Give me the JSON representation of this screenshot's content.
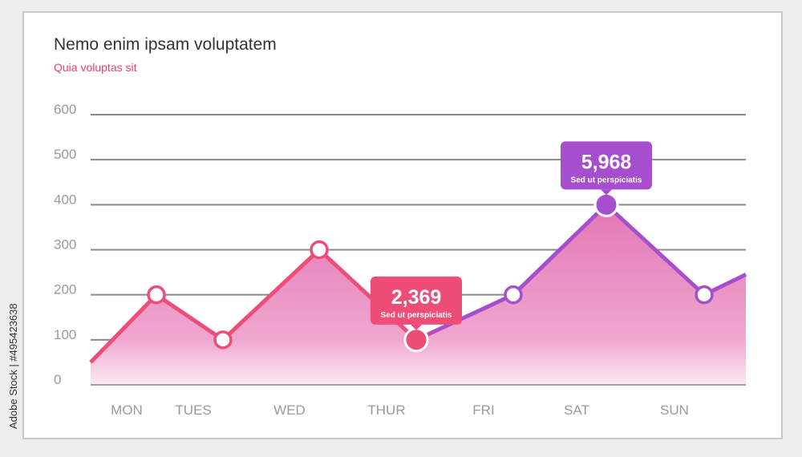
{
  "header": {
    "title": "Nemo enim ipsam voluptatem",
    "subtitle": "Quia voluptas sit"
  },
  "watermark": {
    "stock_id": "Adobe Stock | #495423638"
  },
  "colors": {
    "pink": "#ee4d77",
    "purple": "#a64fce",
    "area_top": "#e377b6",
    "area_bottom": "#fde9f3",
    "grid": "#8a8a8a",
    "axis_text": "#9a9a9a"
  },
  "chart_data": {
    "type": "area",
    "categories": [
      "MON",
      "TUES",
      "WED",
      "THUR",
      "FRI",
      "SAT",
      "SUN"
    ],
    "series": [
      {
        "values": [
          200,
          100,
          300,
          100,
          200,
          400,
          200
        ],
        "start_value": 50,
        "end_value": 245
      }
    ],
    "yticks": [
      0,
      100,
      200,
      300,
      400,
      500,
      600
    ],
    "ylim": [
      0,
      600
    ],
    "grid": true,
    "annotations": [
      {
        "category": "THUR",
        "value_label": "2,369",
        "caption": "Sed ut perspiciatis",
        "color": "#ee4d77"
      },
      {
        "category": "SAT",
        "value_label": "5,968",
        "caption": "Sed ut perspiciatis",
        "color": "#a64fce"
      }
    ]
  }
}
